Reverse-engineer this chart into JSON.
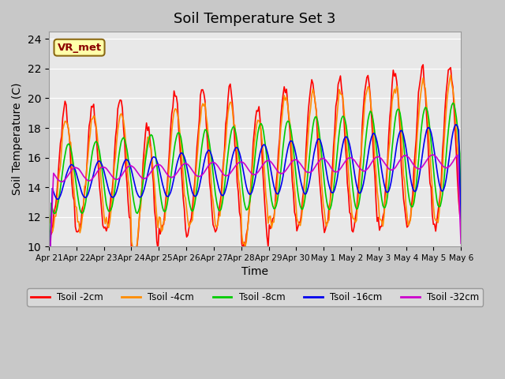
{
  "title": "Soil Temperature Set 3",
  "xlabel": "Time",
  "ylabel": "Soil Temperature (C)",
  "ylim": [
    10,
    24.5
  ],
  "yticks": [
    10,
    12,
    14,
    16,
    18,
    20,
    22,
    24
  ],
  "annotation_text": "VR_met",
  "annotation_color": "#8B0000",
  "annotation_bg": "#FFFFAA",
  "colors": {
    "Tsoil -2cm": "#FF0000",
    "Tsoil -4cm": "#FF8C00",
    "Tsoil -8cm": "#00CC00",
    "Tsoil -16cm": "#0000EE",
    "Tsoil -32cm": "#CC00CC"
  },
  "tick_labels": [
    "Apr 21",
    "Apr 22",
    "Apr 23",
    "Apr 24",
    "Apr 25",
    "Apr 26",
    "Apr 27",
    "Apr 28",
    "Apr 29",
    "Apr 30",
    "May 1",
    "May 2",
    "May 3",
    "May 4",
    "May 5",
    "May 6"
  ],
  "n_days": 15,
  "pts_per_day": 24
}
